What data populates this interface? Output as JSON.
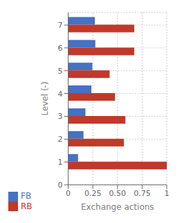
{
  "chart_data": {
    "type": "bar",
    "orientation": "horizontal",
    "categories": [
      1,
      2,
      3,
      4,
      5,
      6,
      7
    ],
    "series": [
      {
        "name": "FB",
        "color": "#4472c4",
        "values": [
          0.1,
          0.155,
          0.175,
          0.235,
          0.245,
          0.275,
          0.27
        ]
      },
      {
        "name": "RB",
        "color": "#c0392b",
        "values": [
          1.0,
          0.565,
          0.58,
          0.475,
          0.42,
          0.67,
          0.67
        ]
      }
    ],
    "xlabel": "Exchange actions",
    "ylabel": "Level (-)",
    "xlim": [
      0,
      1.0
    ],
    "xticks": [
      0,
      0.25,
      {
        "value": 0.5,
        "label": "0.50"
      },
      0.75,
      1
    ],
    "ylim": [
      0,
      7.55
    ],
    "yticks": [
      0,
      1,
      2,
      3,
      4,
      5,
      6,
      7
    ],
    "grid": true,
    "legend": "lower left"
  }
}
